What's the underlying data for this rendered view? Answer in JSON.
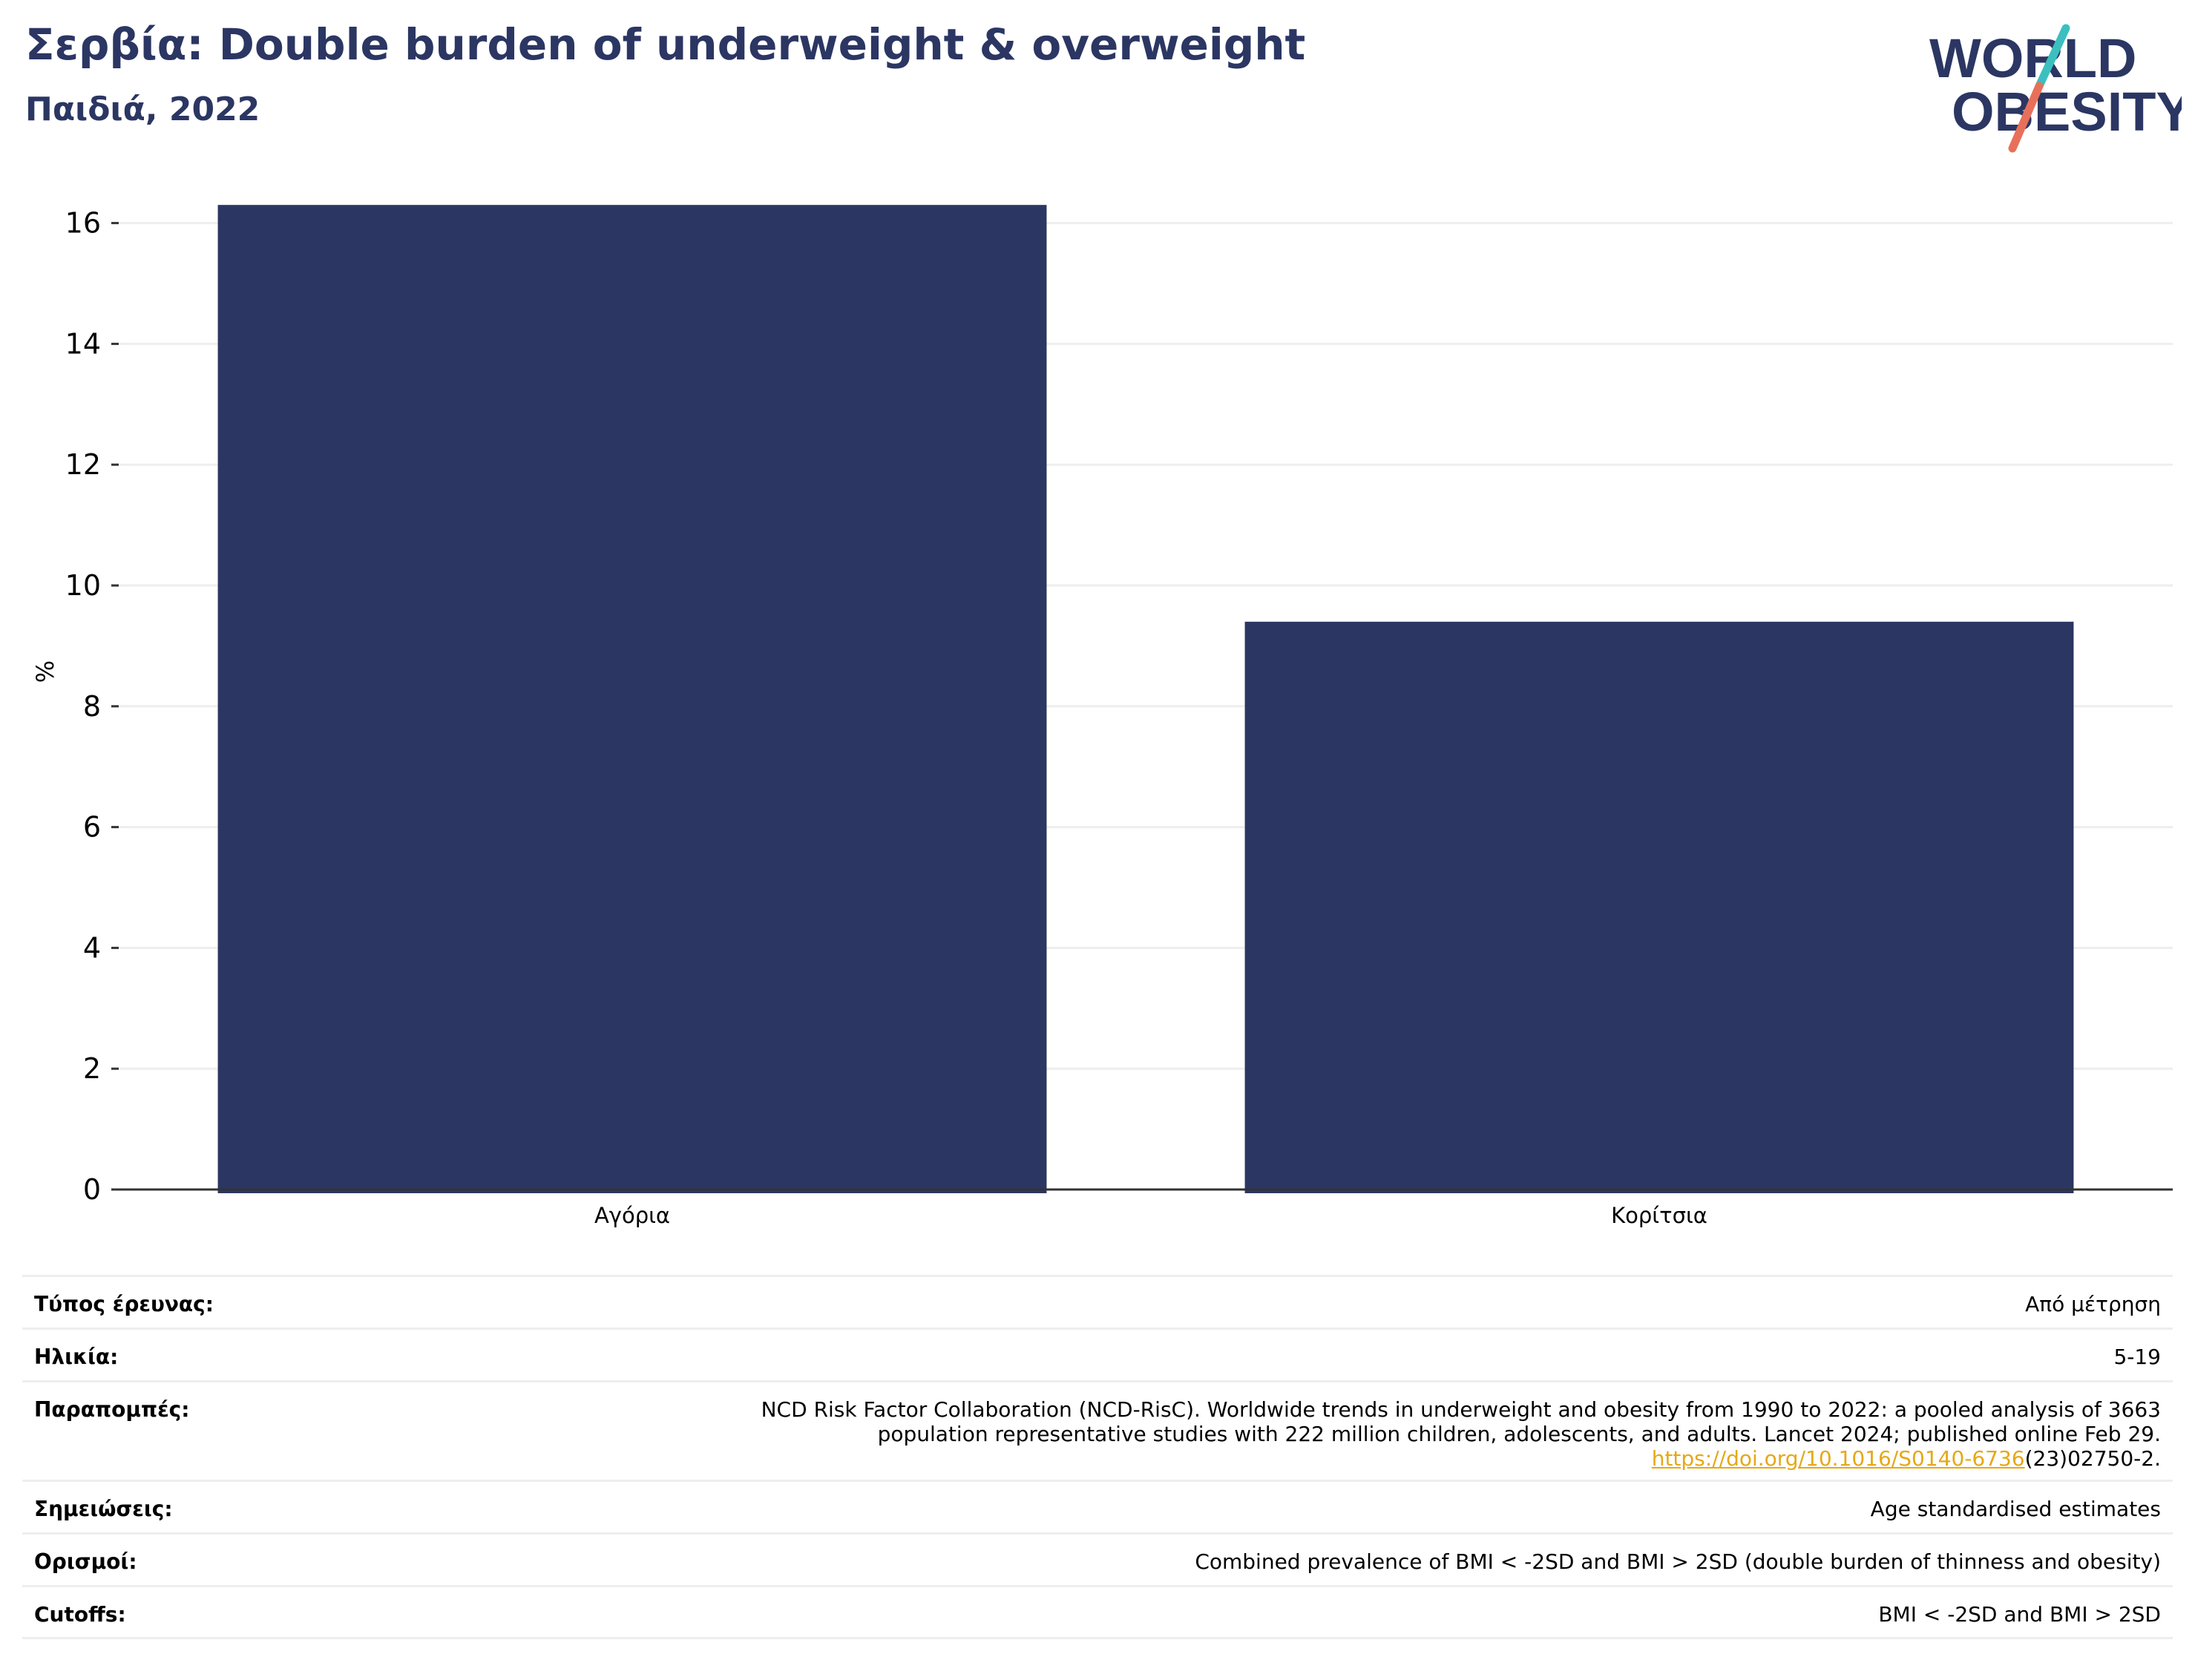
{
  "header": {
    "title": "Σερβία: Double burden of underweight & overweight",
    "subtitle": "Παιδιά, 2022"
  },
  "logo": {
    "line1": "WORLD",
    "line2": "OBESITY",
    "colors": {
      "text": "#2b3663",
      "slash_top": "#3bbfbf",
      "slash_bottom": "#e8705a"
    }
  },
  "chart_data": {
    "type": "bar",
    "categories": [
      "Αγόρια",
      "Κορίτσια"
    ],
    "values": [
      16.3,
      9.4
    ],
    "ylabel": "%",
    "ylim": [
      0,
      16.5
    ],
    "yticks": [
      0,
      2,
      4,
      6,
      8,
      10,
      12,
      14,
      16
    ],
    "grid": true,
    "bar_color": "#2b3663"
  },
  "meta": [
    {
      "label": "Τύπος έρευνας:",
      "value": "Από μέτρηση"
    },
    {
      "label": "Ηλικία:",
      "value": "5-19"
    },
    {
      "label": "Παραπομπές:",
      "value_lines": [
        "NCD Risk Factor Collaboration (NCD-RisC). Worldwide trends in underweight and obesity from 1990 to 2022: a pooled analysis of 3663",
        "population representative studies with 222 million children, adolescents, and adults. Lancet 2024; published online Feb 29."
      ],
      "link": "https://doi.org/10.1016/S0140-6736",
      "link_suffix": "(23)02750-2."
    },
    {
      "label": "Σημειώσεις:",
      "value": "Age standardised estimates"
    },
    {
      "label": "Ορισμοί:",
      "value": "Combined prevalence of BMI < -2SD and BMI > 2SD (double burden of thinness and obesity)"
    },
    {
      "label": "Cutoffs:",
      "value": "BMI < -2SD and BMI > 2SD"
    }
  ]
}
